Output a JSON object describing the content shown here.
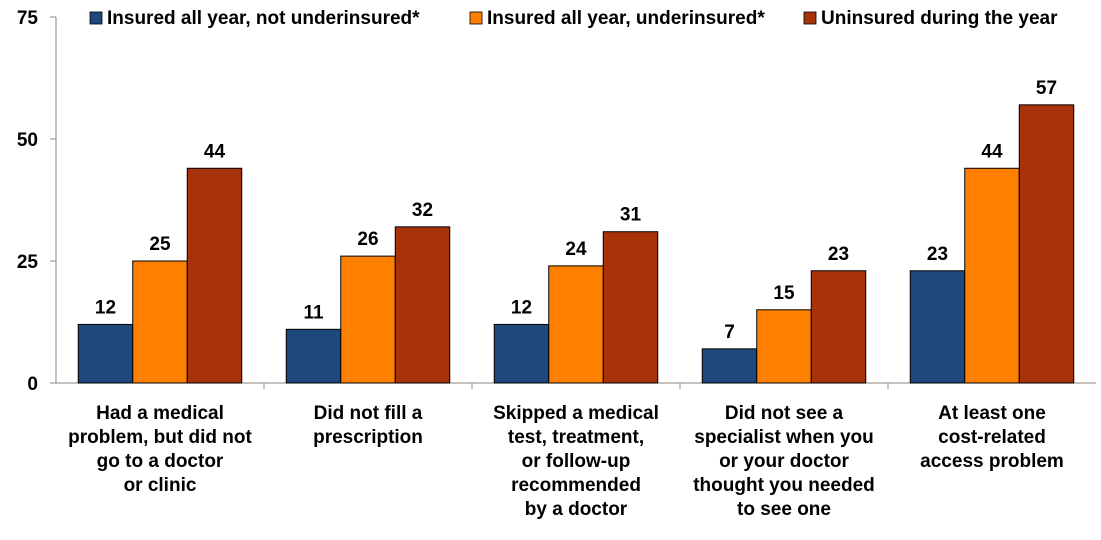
{
  "chart_data": {
    "type": "bar",
    "title": "",
    "xlabel": "",
    "ylabel": "",
    "ylim": [
      0,
      75
    ],
    "y_ticks": [
      "0",
      "25",
      "50",
      "75"
    ],
    "grid": false,
    "legend_position": "top",
    "categories": [
      [
        "Had a medical",
        "problem, but did not",
        "go to a doctor",
        "or clinic"
      ],
      [
        "Did not fill a",
        "prescription"
      ],
      [
        "Skipped a medical",
        "test, treatment,",
        "or follow-up",
        "recommended",
        "by a doctor"
      ],
      [
        "Did not see a",
        "specialist when you",
        "or your doctor",
        "thought you needed",
        "to see one"
      ],
      [
        "At least one",
        "cost-related",
        "access problem"
      ]
    ],
    "series": [
      {
        "name": "Insured all year, not underinsured*",
        "color": "#1F497D",
        "values": [
          12,
          11,
          12,
          7,
          23
        ]
      },
      {
        "name": "Insured all year, underinsured*",
        "color": "#FF7F00",
        "values": [
          25,
          26,
          24,
          15,
          44
        ]
      },
      {
        "name": "Uninsured during the year",
        "color": "#A8320A",
        "values": [
          44,
          32,
          31,
          23,
          57
        ]
      }
    ]
  }
}
